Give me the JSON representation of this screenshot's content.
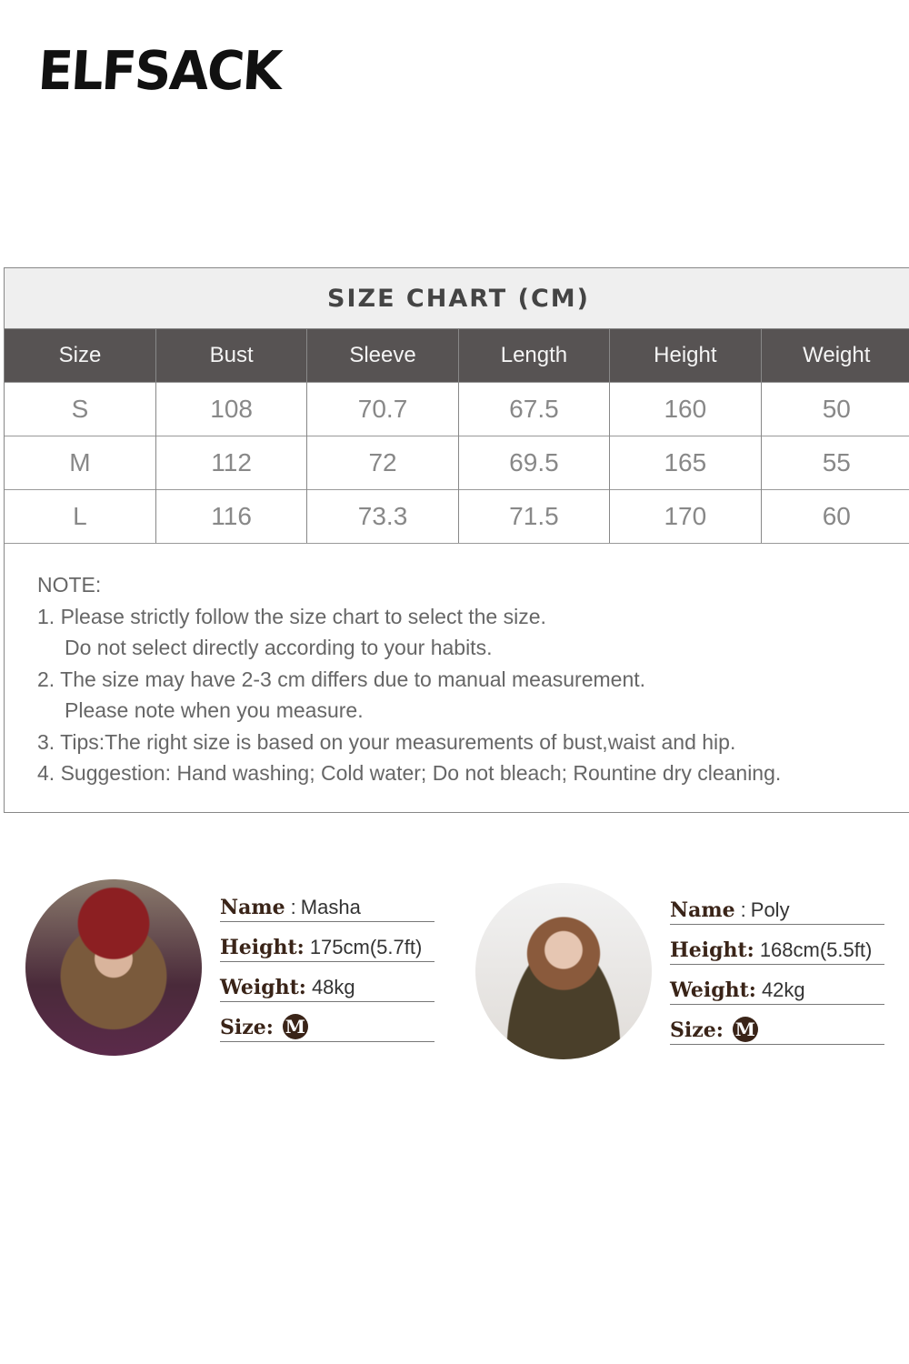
{
  "brand": {
    "logo": "ELFSACK"
  },
  "size_chart": {
    "title": "SIZE CHART (CM)",
    "columns": [
      "Size",
      "Bust",
      "Sleeve",
      "Length",
      "Height",
      "Weight"
    ],
    "rows": [
      [
        "S",
        "108",
        "70.7",
        "67.5",
        "160",
        "50"
      ],
      [
        "M",
        "112",
        "72",
        "69.5",
        "165",
        "55"
      ],
      [
        "L",
        "116",
        "73.3",
        "71.5",
        "170",
        "60"
      ]
    ],
    "header_color": "#575353"
  },
  "notes": {
    "heading": "NOTE:",
    "lines": [
      "1. Please strictly follow the size chart to select the size.",
      "Do not select directly according to your habits.",
      "2. The size may have 2-3 cm differs due to manual measurement.",
      "Please note when you measure.",
      "3. Tips:The right size is based on your measurements of bust,waist and hip.",
      "4. Suggestion: Hand washing; Cold water; Do not bleach; Rountine dry cleaning."
    ]
  },
  "models": [
    {
      "name_label": "Name",
      "name": "Masha",
      "height_label": "Height:",
      "height": "175cm(5.7ft)",
      "weight_label": "Weight:",
      "weight": "48kg",
      "size_label": "Size:",
      "size": "M"
    },
    {
      "name_label": "Name",
      "name": "Poly",
      "height_label": "Height:",
      "height": "168cm(5.5ft)",
      "weight_label": "Weight:",
      "weight": "42kg",
      "size_label": "Size:",
      "size": "M"
    }
  ]
}
